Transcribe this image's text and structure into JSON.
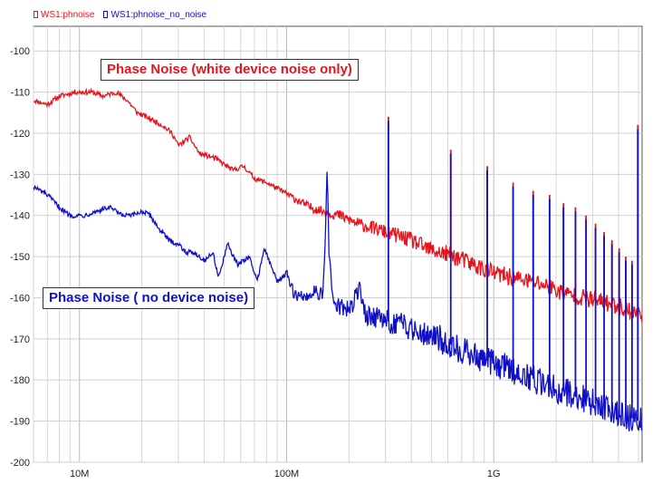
{
  "legend": {
    "series_1": {
      "label": "WS1:phnoise",
      "color": "#e8141c"
    },
    "series_2": {
      "label": "WS1:phnoise_no_noise",
      "color": "#1010c8"
    }
  },
  "annotations": {
    "red_label": "Phase Noise (white device noise only)",
    "blue_label": "Phase Noise ( no device noise)"
  },
  "chart_data": {
    "type": "line",
    "title": "",
    "xlabel": "",
    "ylabel": "",
    "x_scale": "log",
    "xlim": [
      6000000,
      5200000000
    ],
    "ylim": [
      -200,
      -94
    ],
    "grid": true,
    "x_ticks": [
      {
        "value": 10000000,
        "label": "10M"
      },
      {
        "value": 100000000,
        "label": "100M"
      },
      {
        "value": 1000000000,
        "label": "1G"
      }
    ],
    "y_ticks": [
      -200,
      -190,
      -180,
      -170,
      -160,
      -150,
      -140,
      -130,
      -120,
      -110,
      -100
    ],
    "series": [
      {
        "name": "WS1:phnoise",
        "color": "#e8141c",
        "points": [
          [
            6000000,
            -112
          ],
          [
            7000000,
            -113
          ],
          [
            8000000,
            -111
          ],
          [
            9500000,
            -110
          ],
          [
            11500000,
            -110
          ],
          [
            13000000,
            -111
          ],
          [
            15000000,
            -110
          ],
          [
            17000000,
            -112
          ],
          [
            19000000,
            -115
          ],
          [
            21000000,
            -116
          ],
          [
            25000000,
            -118
          ],
          [
            28000000,
            -120
          ],
          [
            30000000,
            -123
          ],
          [
            34000000,
            -121
          ],
          [
            38000000,
            -125
          ],
          [
            45000000,
            -126
          ],
          [
            55000000,
            -129
          ],
          [
            62000000,
            -128
          ],
          [
            70000000,
            -131
          ],
          [
            80000000,
            -132
          ],
          [
            95000000,
            -134
          ],
          [
            110000000,
            -136
          ],
          [
            130000000,
            -138
          ],
          [
            150000000,
            -139
          ],
          [
            180000000,
            -140
          ],
          [
            220000000,
            -142
          ],
          [
            260000000,
            -143
          ],
          [
            300000000,
            -144
          ],
          [
            350000000,
            -145
          ],
          [
            400000000,
            -146
          ],
          [
            470000000,
            -148
          ],
          [
            550000000,
            -149
          ],
          [
            650000000,
            -150
          ],
          [
            800000000,
            -152
          ],
          [
            1000000000,
            -154
          ],
          [
            1200000000,
            -155
          ],
          [
            1500000000,
            -156
          ],
          [
            1800000000,
            -157
          ],
          [
            2200000000,
            -159
          ],
          [
            2700000000,
            -160
          ],
          [
            3300000000,
            -161
          ],
          [
            4000000000,
            -162
          ],
          [
            5000000000,
            -164
          ]
        ],
        "spurs": [
          {
            "x": 310000000,
            "y": -116
          },
          {
            "x": 620000000,
            "y": -124
          },
          {
            "x": 930000000,
            "y": -128
          },
          {
            "x": 1240000000,
            "y": -132
          },
          {
            "x": 1550000000,
            "y": -134
          },
          {
            "x": 1860000000,
            "y": -135
          },
          {
            "x": 2170000000,
            "y": -137
          },
          {
            "x": 2480000000,
            "y": -138
          },
          {
            "x": 2790000000,
            "y": -140
          },
          {
            "x": 3100000000,
            "y": -142
          },
          {
            "x": 3410000000,
            "y": -144
          },
          {
            "x": 3720000000,
            "y": -146
          },
          {
            "x": 4030000000,
            "y": -148
          },
          {
            "x": 4340000000,
            "y": -150
          },
          {
            "x": 4650000000,
            "y": -151
          },
          {
            "x": 4960000000,
            "y": -118
          }
        ]
      },
      {
        "name": "WS1:phnoise_no_noise",
        "color": "#1010c8",
        "points": [
          [
            6000000,
            -133
          ],
          [
            7000000,
            -135
          ],
          [
            8000000,
            -138
          ],
          [
            9000000,
            -140
          ],
          [
            10500000,
            -140
          ],
          [
            12000000,
            -139
          ],
          [
            14000000,
            -138
          ],
          [
            16000000,
            -140
          ],
          [
            18000000,
            -140
          ],
          [
            20000000,
            -139
          ],
          [
            22000000,
            -140
          ],
          [
            24000000,
            -143
          ],
          [
            27000000,
            -146
          ],
          [
            30000000,
            -147
          ],
          [
            33000000,
            -149
          ],
          [
            36000000,
            -149
          ],
          [
            40000000,
            -151
          ],
          [
            44000000,
            -149
          ],
          [
            47000000,
            -155
          ],
          [
            52000000,
            -147
          ],
          [
            58000000,
            -152
          ],
          [
            66000000,
            -150
          ],
          [
            72000000,
            -156
          ],
          [
            78000000,
            -148
          ],
          [
            90000000,
            -156
          ],
          [
            100000000,
            -154
          ],
          [
            108000000,
            -159
          ],
          [
            122000000,
            -160
          ],
          [
            140000000,
            -158
          ],
          [
            150000000,
            -160
          ],
          [
            155000000,
            -140
          ],
          [
            157000000,
            -126
          ],
          [
            160000000,
            -150
          ],
          [
            170000000,
            -162
          ],
          [
            200000000,
            -163
          ],
          [
            225000000,
            -158
          ],
          [
            240000000,
            -164
          ],
          [
            280000000,
            -165
          ],
          [
            320000000,
            -166
          ],
          [
            380000000,
            -167
          ],
          [
            450000000,
            -168
          ],
          [
            550000000,
            -170
          ],
          [
            650000000,
            -172
          ],
          [
            800000000,
            -174
          ],
          [
            1000000000,
            -176
          ],
          [
            1300000000,
            -178
          ],
          [
            1600000000,
            -180
          ],
          [
            2000000000,
            -182
          ],
          [
            2500000000,
            -184
          ],
          [
            3200000000,
            -186
          ],
          [
            4000000000,
            -188
          ],
          [
            5000000000,
            -190
          ]
        ],
        "spurs": [
          {
            "x": 310000000,
            "y": -117
          },
          {
            "x": 620000000,
            "y": -125
          },
          {
            "x": 930000000,
            "y": -129
          },
          {
            "x": 1240000000,
            "y": -133
          },
          {
            "x": 1550000000,
            "y": -135
          },
          {
            "x": 1860000000,
            "y": -136
          },
          {
            "x": 2170000000,
            "y": -138
          },
          {
            "x": 2480000000,
            "y": -139
          },
          {
            "x": 2790000000,
            "y": -141
          },
          {
            "x": 3100000000,
            "y": -143
          },
          {
            "x": 3410000000,
            "y": -145
          },
          {
            "x": 3720000000,
            "y": -147
          },
          {
            "x": 4030000000,
            "y": -149
          },
          {
            "x": 4340000000,
            "y": -151
          },
          {
            "x": 4650000000,
            "y": -152
          },
          {
            "x": 4960000000,
            "y": -119
          }
        ]
      }
    ]
  }
}
